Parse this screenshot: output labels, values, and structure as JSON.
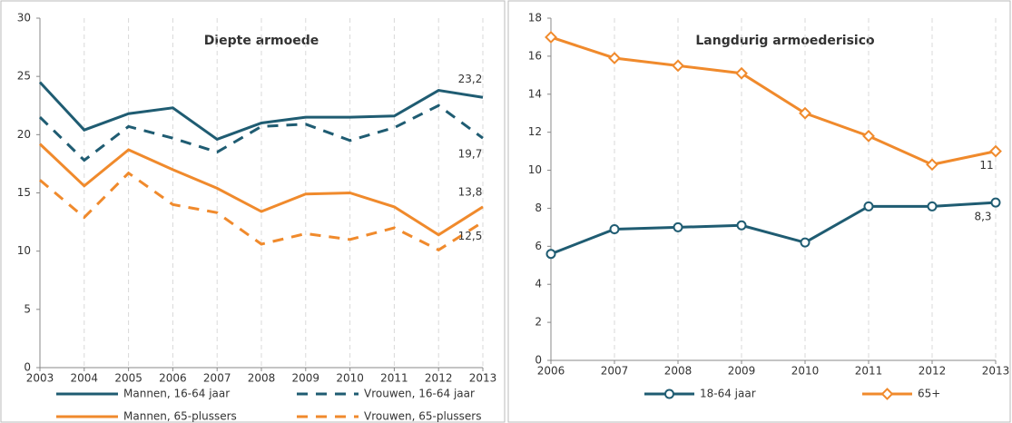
{
  "chart_data": [
    {
      "type": "line",
      "title": "Diepte armoede",
      "x": [
        2003,
        2004,
        2005,
        2006,
        2007,
        2008,
        2009,
        2010,
        2011,
        2012,
        2013
      ],
      "xlim": [
        2003,
        2013
      ],
      "xticks": [
        2003,
        2004,
        2005,
        2006,
        2007,
        2008,
        2009,
        2010,
        2011,
        2012,
        2013
      ],
      "ylim": [
        0,
        30
      ],
      "yticks": [
        0,
        5,
        10,
        15,
        20,
        25,
        30
      ],
      "grid": "x",
      "series": [
        {
          "name": "Mannen, 16-64 jaar",
          "color": "#1f5c72",
          "dash": false,
          "values": [
            24.5,
            20.4,
            21.8,
            22.3,
            19.6,
            21.0,
            21.5,
            21.5,
            21.6,
            23.8,
            23.2
          ],
          "value_labels": [
            null,
            null,
            null,
            null,
            null,
            null,
            null,
            null,
            null,
            null,
            "23,2"
          ]
        },
        {
          "name": "Vrouwen, 16-64 jaar",
          "color": "#1f5c72",
          "dash": true,
          "values": [
            21.5,
            17.8,
            20.7,
            19.7,
            18.5,
            20.7,
            20.9,
            19.5,
            20.6,
            22.5,
            19.7
          ],
          "value_labels": [
            null,
            null,
            null,
            null,
            null,
            null,
            null,
            null,
            null,
            null,
            "19,7"
          ]
        },
        {
          "name": "Mannen, 65-plussers",
          "color": "#f08a2c",
          "dash": false,
          "values": [
            19.2,
            15.6,
            18.7,
            17.0,
            15.4,
            13.4,
            14.9,
            15.0,
            13.8,
            11.4,
            13.8
          ],
          "value_labels": [
            null,
            null,
            null,
            null,
            null,
            null,
            null,
            null,
            null,
            null,
            "13,8"
          ]
        },
        {
          "name": "Vrouwen, 65-plussers",
          "color": "#f08a2c",
          "dash": true,
          "values": [
            16.1,
            12.9,
            16.7,
            14.0,
            13.3,
            10.6,
            11.5,
            11.0,
            12.0,
            10.1,
            12.5
          ],
          "value_labels": [
            null,
            null,
            null,
            null,
            null,
            null,
            null,
            null,
            null,
            null,
            "12,5"
          ]
        }
      ]
    },
    {
      "type": "line",
      "title": "Langdurig armoederisico",
      "x": [
        2006,
        2007,
        2008,
        2009,
        2010,
        2011,
        2012,
        2013
      ],
      "xlim": [
        2006,
        2013
      ],
      "xticks": [
        2006,
        2007,
        2008,
        2009,
        2010,
        2011,
        2012,
        2013
      ],
      "ylim": [
        0,
        18
      ],
      "yticks": [
        0,
        2,
        4,
        6,
        8,
        10,
        12,
        14,
        16,
        18
      ],
      "grid": "x",
      "series": [
        {
          "name": "18-64 jaar",
          "color": "#1f5c72",
          "marker": "circle",
          "values": [
            5.6,
            6.9,
            7.0,
            7.1,
            6.2,
            8.1,
            8.1,
            8.3
          ],
          "value_labels": [
            null,
            null,
            null,
            null,
            null,
            null,
            null,
            "8,3"
          ]
        },
        {
          "name": "65+",
          "color": "#f08a2c",
          "marker": "diamond",
          "values": [
            17.0,
            15.9,
            15.5,
            15.1,
            13.0,
            11.8,
            10.3,
            11.0
          ],
          "value_labels": [
            null,
            null,
            null,
            null,
            null,
            null,
            null,
            "11"
          ]
        }
      ]
    }
  ]
}
